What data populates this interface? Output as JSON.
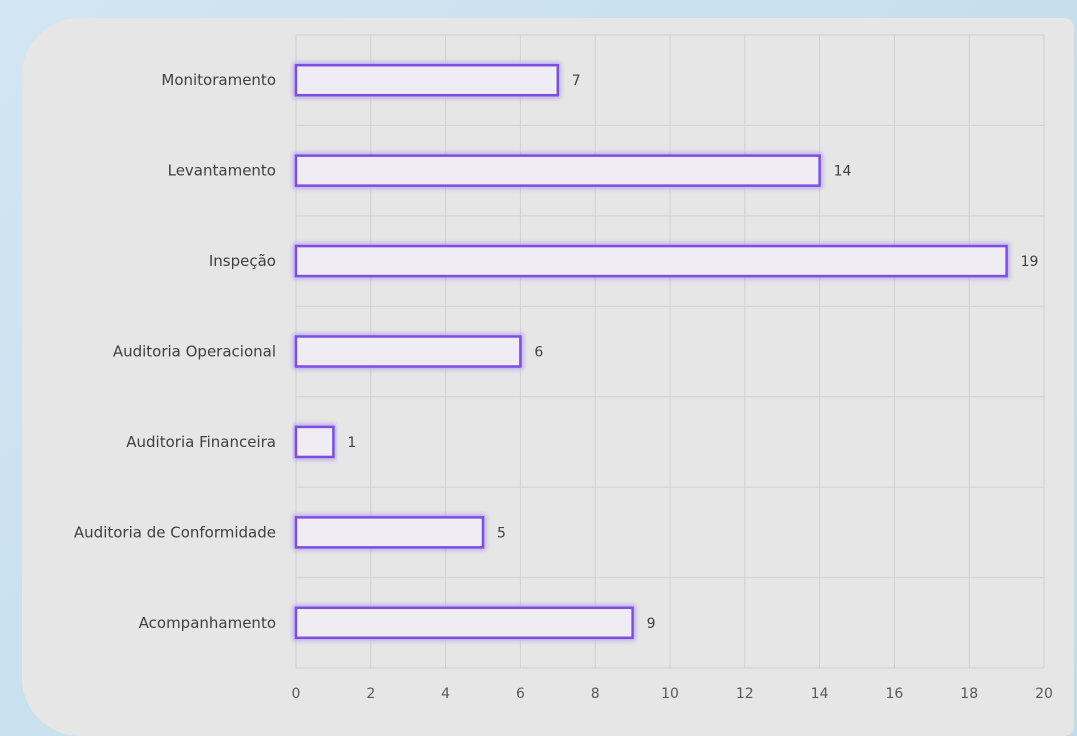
{
  "chart_data": {
    "type": "bar",
    "orientation": "horizontal",
    "categories": [
      "Monitoramento",
      "Levantamento",
      "Inspeção",
      "Auditoria Operacional",
      "Auditoria Financeira",
      "Auditoria de Conformidade",
      "Acompanhamento"
    ],
    "values": [
      7,
      14,
      19,
      6,
      1,
      5,
      9
    ],
    "xlim": [
      0,
      20
    ],
    "x_ticks": [
      0,
      2,
      4,
      6,
      8,
      10,
      12,
      14,
      16,
      18,
      20
    ],
    "grid": true,
    "legend": "none",
    "bar_fill": "#efecf4",
    "bar_stroke": "#7d4fe0",
    "bar_glow": "#b9a2f0",
    "grid_color": "#d0d0d0"
  }
}
